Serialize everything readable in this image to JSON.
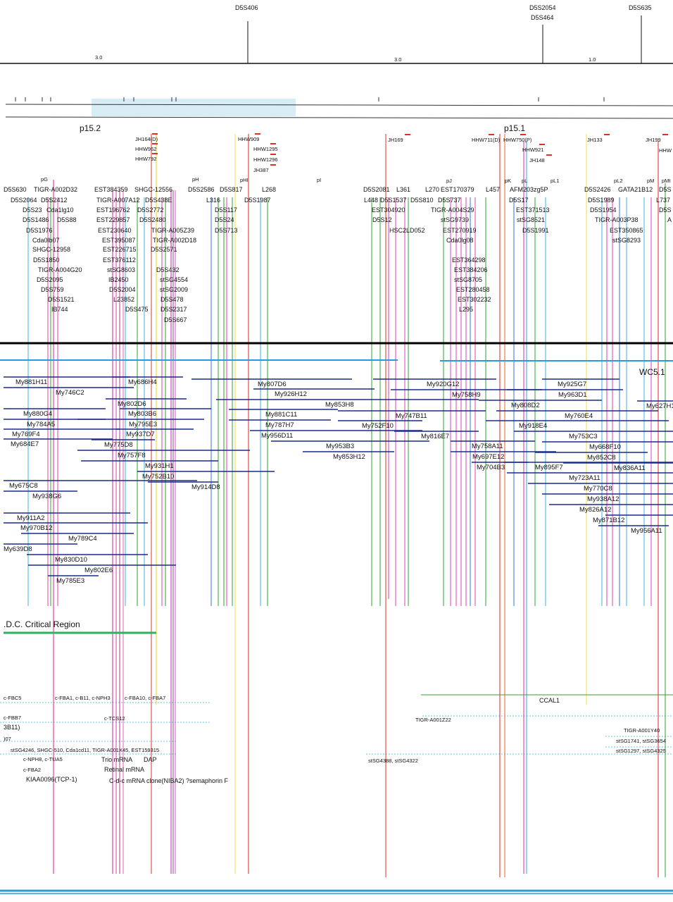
{
  "header": {
    "top_markers": [
      "D5S406",
      "D5S2054",
      "D5S464",
      "D5S635"
    ],
    "scale_labels": [
      "3.0",
      "3.0",
      "1.0"
    ],
    "bands": [
      "p15.2",
      "p15.1"
    ]
  },
  "markers": {
    "hybrids": [
      "JH164(D)",
      "HHW962",
      "HHW792",
      "HHW909",
      "HHW1295",
      "HHW1296",
      "JH387",
      "JH169",
      "HHW711(D)",
      "HHW750(P)",
      "HHW921",
      "JH148",
      "JH133",
      "JH199",
      "HHW"
    ],
    "bins": [
      "pG",
      "pH",
      "pHI",
      "pI",
      "pJ",
      "pK",
      "pL",
      "pL1",
      "pL2",
      "pM",
      "pMt"
    ],
    "loci": [
      [
        "D5S630",
        "TIGR-A002D32",
        "EST384359",
        "SHGC-12556",
        "D5S2586",
        "D5S817",
        "L268",
        "D5S2081",
        "L361",
        "L270",
        "EST170379",
        "L457",
        "AFM203zg5P",
        "D5S2426",
        "GATA21B12",
        "D5S"
      ],
      [
        "D5S2064",
        "D5S2412",
        "TIGR-A007A12",
        "D5S438E",
        "L316",
        "D5S1987",
        "L448",
        "D5S1537",
        "D5S810",
        "D5S737",
        "D5S17",
        "D5S1989",
        "L737"
      ],
      [
        "D5S23",
        "Cda1lg10",
        "EST196762",
        "D5S2772",
        "D5S117",
        "EST304920",
        "TIGR-A004S29",
        "EST371513",
        "D5S1954",
        "D5S"
      ],
      [
        "D5S1486",
        "D5S88",
        "EST229857",
        "D5S2480",
        "D5S24",
        "D5S12",
        "stSG9739",
        "stSG8521",
        "TIGR-A003P38",
        "A"
      ],
      [
        "D5S1976",
        "EST230640",
        "TIGR-A005Z39",
        "D5S713",
        "HSC2LD052",
        "EST270919",
        "D5S1991",
        "EST350865"
      ],
      [
        "Cda0lb07",
        "EST395087",
        "TIGR-A002D18",
        "Cda0lg08",
        "stSG8293"
      ],
      [
        "SHGC-12958",
        "EST226715",
        "D5S2571"
      ],
      [
        "D5S1850",
        "EST376112",
        "EST364298"
      ],
      [
        "TIGR-A004G20",
        "stSG8603",
        "D5S432",
        "EST384206"
      ],
      [
        "D5S2095",
        "IB2450",
        "stSG4554",
        "stSG8705"
      ],
      [
        "D5S759",
        "D5S2004",
        "stSG2009",
        "EST280458"
      ],
      [
        "D5S1521",
        "L23852",
        "D5S478",
        "EST302232"
      ],
      [
        "IB744",
        "D5S475",
        "D5S2317",
        "L295"
      ],
      [
        "D5S667"
      ]
    ]
  },
  "clones": {
    "contig": "WC5.1",
    "names": [
      "My881H11",
      "My686H4",
      "My807D6",
      "My920G12",
      "My925G7",
      "My746C2",
      "My926H12",
      "My758H9",
      "My963D1",
      "My802D6",
      "My853H8",
      "My808D2",
      "My627H1",
      "My880G4",
      "My803B6",
      "My881C11",
      "My747B11",
      "My760E4",
      "My784A5",
      "My795E3",
      "My787H7",
      "My752F10",
      "My918E4",
      "My769F4",
      "My937D7",
      "My956D11",
      "My816E7",
      "My753C3",
      "My684E7",
      "My775D8",
      "My953B3",
      "My758A11",
      "My668F10",
      "My757F8",
      "My853H12",
      "My697E12",
      "My852C8",
      "My931H1",
      "My704B3",
      "My895F7",
      "My836A11",
      "My752B10",
      "My723A11",
      "My675C8",
      "My914D8",
      "My770C8",
      "My938G6",
      "My938A12",
      "My826A12",
      "My911A2",
      "My871B12",
      "My970B12",
      "My956A11",
      "My789C4",
      "My639D8",
      "My830D10",
      "My802E6",
      "My785E3"
    ]
  },
  "region": {
    "label": ".D.C. Critical Region"
  },
  "genes": [
    "c-FBC5",
    "c-FBA1, c-B11, c-NPH3",
    "c-FBA10, c-FBA7",
    "CCAL1",
    "c-FBB7",
    "c-TCS12",
    "TIGR-A001Z22",
    "3B11)",
    "TIGR-A001Y40",
    ")07",
    "stSG1741, stSG3654",
    "stSG4246, SHGC-510, Cda1cd11, TIGR-A001X45, EST159315",
    "stSG1297, stSG4325",
    "c-NPH8, c-TUA5",
    "Trio mRNA",
    "DAP",
    "stSG4388, stSG4322",
    "c-FBA2",
    "Retinal mRNA",
    "KIAA0096(TCP-1)",
    "C-d-c mRNA clone(NIBA2) ?semaphorin F"
  ]
}
